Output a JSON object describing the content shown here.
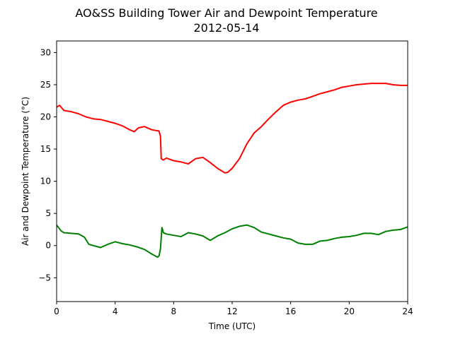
{
  "chart_data": {
    "type": "line",
    "title": "AO&SS Building Tower Air and Dewpoint Temperature",
    "subtitle": "2012-05-14",
    "xlabel": "Time (UTC)",
    "ylabel": "Air and Dewpoint Temperature (°C)",
    "xlim": [
      0,
      24
    ],
    "ylim": [
      -8.7,
      31.8
    ],
    "xticks": [
      0,
      4,
      8,
      12,
      16,
      20,
      24
    ],
    "yticks": [
      -5,
      0,
      5,
      10,
      15,
      20,
      25,
      30
    ],
    "grid": false,
    "legend": "none",
    "series": [
      {
        "color": "#ff0000",
        "x": [
          0,
          0.2,
          0.5,
          1,
          1.5,
          2,
          2.5,
          3,
          3.5,
          4,
          4.5,
          5,
          5.3,
          5.6,
          6,
          6.5,
          7,
          7.1,
          7.15,
          7.3,
          7.5,
          8,
          8.5,
          9,
          9.5,
          10,
          10.5,
          11,
          11.5,
          11.7,
          12,
          12.5,
          13,
          13.5,
          14,
          14.5,
          15,
          15.5,
          16,
          16.5,
          17,
          17.5,
          18,
          18.5,
          19,
          19.5,
          20,
          20.5,
          21,
          21.5,
          22,
          22.5,
          23,
          23.5,
          24
        ],
        "y": [
          21.5,
          21.8,
          21.0,
          20.8,
          20.5,
          20.0,
          19.7,
          19.6,
          19.3,
          19.0,
          18.6,
          18.0,
          17.7,
          18.3,
          18.5,
          18.0,
          17.8,
          17.0,
          13.5,
          13.3,
          13.6,
          13.2,
          13.0,
          12.7,
          13.5,
          13.7,
          12.9,
          12.0,
          11.3,
          11.4,
          12.0,
          13.5,
          15.8,
          17.5,
          18.5,
          19.7,
          20.8,
          21.8,
          22.3,
          22.6,
          22.8,
          23.2,
          23.6,
          23.9,
          24.2,
          24.6,
          24.8,
          25.0,
          25.1,
          25.2,
          25.2,
          25.2,
          25.0,
          24.9,
          24.9
        ]
      },
      {
        "color": "#008000",
        "x": [
          0,
          0.3,
          0.5,
          1,
          1.5,
          1.9,
          2.2,
          2.5,
          3,
          3.5,
          4,
          4.5,
          5,
          5.5,
          6,
          6.5,
          6.9,
          7.0,
          7.1,
          7.2,
          7.3,
          7.5,
          8,
          8.5,
          9,
          9.5,
          10,
          10.5,
          11,
          11.5,
          12,
          12.5,
          13,
          13.5,
          14,
          14.5,
          15,
          15.5,
          16,
          16.5,
          17,
          17.5,
          18,
          18.5,
          19,
          19.5,
          20,
          20.5,
          21,
          21.5,
          22,
          22.5,
          23,
          23.5,
          24
        ],
        "y": [
          3.2,
          2.3,
          2.0,
          1.9,
          1.8,
          1.3,
          0.2,
          0.0,
          -0.3,
          0.2,
          0.6,
          0.3,
          0.1,
          -0.2,
          -0.6,
          -1.3,
          -1.8,
          -1.6,
          -0.5,
          2.8,
          2.0,
          1.8,
          1.6,
          1.4,
          2.0,
          1.8,
          1.5,
          0.8,
          1.5,
          2.0,
          2.6,
          3.0,
          3.2,
          2.8,
          2.1,
          1.8,
          1.5,
          1.2,
          1.0,
          0.4,
          0.2,
          0.2,
          0.7,
          0.8,
          1.1,
          1.3,
          1.4,
          1.6,
          1.9,
          1.9,
          1.7,
          2.2,
          2.4,
          2.5,
          2.9
        ]
      }
    ]
  }
}
